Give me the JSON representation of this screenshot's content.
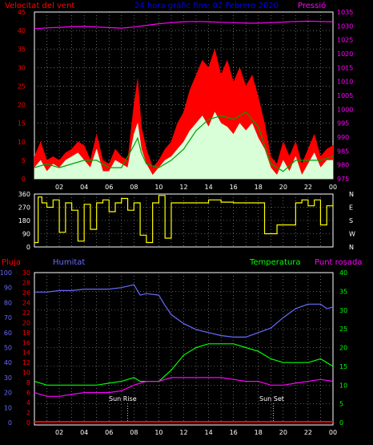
{
  "headers": {
    "wind_label": "Velocitat del vent",
    "title": "24 hora gràfic fins: 02 Febrero 2020",
    "pressure_label": "Pressió",
    "rain_label": "Pluja",
    "humidity_label": "Humitat",
    "temperature_label": "Temperatura",
    "dewpoint_label": "Punt rosada",
    "sunrise_label": "Sun Rise",
    "sunset_label": "Sun Set"
  },
  "colors": {
    "wind_label": "#ff0000",
    "title": "#0000ff",
    "pressure": "#ff00ff",
    "gust": "#ff0000",
    "wind_avg": "#00a000",
    "wind": "#d8ffd8",
    "direction": "#ffff00",
    "humidity": "#6a6aff",
    "temperature": "#00ff00",
    "dewpoint": "#ff00ff",
    "rain": "#ff0000"
  },
  "chart_data": [
    {
      "type": "line",
      "name": "wind-pressure",
      "x_ticks": [
        "02",
        "04",
        "06",
        "08",
        "10",
        "12",
        "14",
        "16",
        "18",
        "20",
        "22",
        "00"
      ],
      "y_left_ticks": [
        "0",
        "5",
        "10",
        "15",
        "20",
        "25",
        "30",
        "35",
        "40",
        "45"
      ],
      "y_right_ticks": [
        "975",
        "980",
        "985",
        "990",
        "995",
        "1000",
        "1005",
        "1010",
        "1015",
        "1020",
        "1025",
        "1030",
        "1035"
      ],
      "ylim_left": [
        0,
        45
      ],
      "ylim_right": [
        975,
        1035
      ],
      "series": [
        {
          "name": "Pressió",
          "axis": "right",
          "x": [
            0,
            1,
            2,
            3,
            4,
            5,
            6,
            7,
            8,
            9,
            10,
            11,
            12,
            13,
            14,
            15,
            16,
            17,
            18,
            19,
            20,
            21,
            22,
            23,
            24
          ],
          "values": [
            1029,
            1029.3,
            1029.5,
            1029.7,
            1029.8,
            1029.6,
            1029.4,
            1029.2,
            1029.6,
            1030.2,
            1030.8,
            1031.2,
            1031.5,
            1031.6,
            1031.5,
            1031.3,
            1031.2,
            1031.0,
            1031.0,
            1031.2,
            1031.4,
            1031.6,
            1031.7,
            1031.6,
            1031.5
          ]
        },
        {
          "name": "gust",
          "axis": "left",
          "x": [
            0,
            0.5,
            1,
            1.5,
            2,
            2.5,
            3,
            3.5,
            4,
            4.5,
            5,
            5.5,
            6,
            6.5,
            7,
            7.5,
            8,
            8.3,
            8.6,
            9,
            9.5,
            10,
            10.5,
            11,
            11.5,
            12,
            12.5,
            13,
            13.5,
            14,
            14.5,
            15,
            15.5,
            16,
            16.5,
            17,
            17.5,
            18,
            18.5,
            19,
            19.5,
            20,
            20.5,
            21,
            21.5,
            22,
            22.5,
            23,
            23.5,
            24
          ],
          "values": [
            6,
            10,
            5,
            6,
            5,
            7,
            8,
            10,
            9,
            5,
            12,
            5,
            4,
            8,
            6,
            5,
            20,
            27,
            14,
            8,
            3,
            5,
            8,
            10,
            15,
            18,
            24,
            28,
            32,
            30,
            35,
            28,
            32,
            26,
            30,
            25,
            28,
            22,
            15,
            6,
            4,
            10,
            6,
            10,
            4,
            8,
            12,
            6,
            8,
            9
          ]
        },
        {
          "name": "wind_avg",
          "axis": "left",
          "x": [
            0,
            1,
            2,
            3,
            4,
            5,
            6,
            7,
            8,
            8.3,
            8.6,
            9,
            10,
            11,
            12,
            13,
            14,
            15,
            16,
            17,
            18,
            19,
            20,
            21,
            22,
            23,
            24
          ],
          "values": [
            3,
            4,
            3,
            4,
            5,
            5,
            3,
            3,
            9,
            11,
            7,
            4,
            3,
            5,
            8,
            13,
            16,
            17,
            16,
            18,
            14,
            4,
            2,
            5,
            5,
            5,
            6
          ]
        },
        {
          "name": "wind",
          "axis": "left",
          "x": [
            0,
            0.5,
            1,
            1.5,
            2,
            2.5,
            3,
            3.5,
            4,
            4.5,
            5,
            5.5,
            6,
            6.5,
            7,
            7.5,
            8,
            8.3,
            8.6,
            9,
            9.5,
            10,
            10.5,
            11,
            11.5,
            12,
            12.5,
            13,
            13.5,
            14,
            14.5,
            15,
            15.5,
            16,
            16.5,
            17,
            17.5,
            18,
            18.5,
            19,
            19.5,
            20,
            20.5,
            21,
            21.5,
            22,
            22.5,
            23,
            23.5,
            24
          ],
          "values": [
            3,
            5,
            2,
            4,
            3,
            5,
            6,
            7,
            5,
            3,
            8,
            2,
            2,
            5,
            4,
            3,
            12,
            15,
            8,
            4,
            1,
            3,
            5,
            6,
            8,
            10,
            13,
            15,
            17,
            14,
            18,
            15,
            14,
            12,
            15,
            13,
            15,
            11,
            8,
            3,
            1,
            5,
            2,
            6,
            1,
            4,
            7,
            3,
            5,
            5
          ]
        }
      ]
    },
    {
      "type": "line",
      "name": "wind-direction",
      "y_left_ticks": [
        "0",
        "90",
        "180",
        "270",
        "360"
      ],
      "y_right_labels": [
        "N",
        "W",
        "S",
        "E",
        "N"
      ],
      "ylim": [
        0,
        360
      ],
      "series": [
        {
          "name": "direction",
          "x": [
            0,
            0.3,
            0.6,
            1,
            1.5,
            2,
            2.5,
            3,
            3.5,
            4,
            4.5,
            5,
            5.5,
            6,
            6.5,
            7,
            7.5,
            8,
            8.5,
            9,
            9.5,
            10,
            10.5,
            11,
            12,
            13,
            14,
            15,
            16,
            17,
            18,
            18.5,
            19,
            19.5,
            20,
            20.5,
            21,
            21.5,
            22,
            22.5,
            23,
            23.5,
            24
          ],
          "values": [
            30,
            340,
            300,
            270,
            320,
            100,
            300,
            250,
            40,
            290,
            120,
            300,
            320,
            240,
            300,
            330,
            250,
            300,
            80,
            30,
            300,
            350,
            60,
            300,
            300,
            300,
            320,
            305,
            300,
            300,
            300,
            90,
            90,
            150,
            150,
            150,
            300,
            320,
            280,
            320,
            150,
            280,
            300
          ]
        }
      ]
    },
    {
      "type": "line",
      "name": "temp-humidity",
      "y_hum_ticks": [
        "0",
        "10",
        "20",
        "30",
        "40",
        "50",
        "60",
        "70",
        "80",
        "90",
        "100"
      ],
      "y_rain_ticks": [
        "0",
        "2",
        "4",
        "6",
        "8",
        "10",
        "12",
        "14",
        "16",
        "18",
        "20",
        "22",
        "24",
        "26",
        "28",
        "30"
      ],
      "y_temp_ticks": [
        "0",
        "5",
        "10",
        "15",
        "20",
        "25",
        "30",
        "35",
        "40"
      ],
      "ylim_hum": [
        0,
        100
      ],
      "ylim_temp": [
        0,
        40
      ],
      "sunrise_x": 7.5,
      "sunset_x": 19.2,
      "series": [
        {
          "name": "Humitat",
          "axis": "hum",
          "x": [
            0,
            1,
            2,
            3,
            4,
            5,
            6,
            7,
            8,
            8.5,
            9,
            10,
            10.5,
            11,
            12,
            13,
            14,
            15,
            16,
            17,
            18,
            19,
            20,
            21,
            22,
            23,
            23.5,
            24
          ],
          "values": [
            87,
            87,
            88,
            88,
            89,
            89,
            89,
            90,
            92,
            85,
            86,
            85,
            78,
            72,
            66,
            62,
            60,
            58,
            57,
            57,
            60,
            63,
            70,
            76,
            79,
            79,
            76,
            77
          ]
        },
        {
          "name": "Temperatura",
          "axis": "temp",
          "x": [
            0,
            1,
            2,
            3,
            4,
            5,
            6,
            7,
            8,
            8.5,
            9,
            10,
            11,
            12,
            13,
            14,
            15,
            16,
            17,
            18,
            19,
            20,
            21,
            22,
            23,
            23.5,
            24
          ],
          "values": [
            11,
            10,
            10,
            10,
            10,
            10,
            10.5,
            11,
            12,
            11,
            11,
            11,
            14,
            18,
            20,
            21,
            21,
            21,
            20,
            19,
            17,
            16,
            16,
            16,
            17,
            16,
            15
          ]
        },
        {
          "name": "Punt rosada",
          "axis": "temp",
          "x": [
            0,
            1,
            2,
            3,
            4,
            5,
            6,
            7,
            8,
            9,
            10,
            11,
            12,
            13,
            14,
            15,
            16,
            17,
            18,
            19,
            20,
            21,
            22,
            23,
            24
          ],
          "values": [
            8,
            7,
            7,
            7.5,
            8,
            8,
            8,
            8.5,
            10,
            11,
            11,
            12,
            12,
            12,
            12,
            12,
            11.5,
            11,
            11,
            10,
            10,
            10.5,
            11,
            11.5,
            11
          ]
        },
        {
          "name": "Pluja",
          "axis": "rain",
          "x": [
            0,
            24
          ],
          "values": [
            0,
            0
          ]
        }
      ]
    }
  ]
}
